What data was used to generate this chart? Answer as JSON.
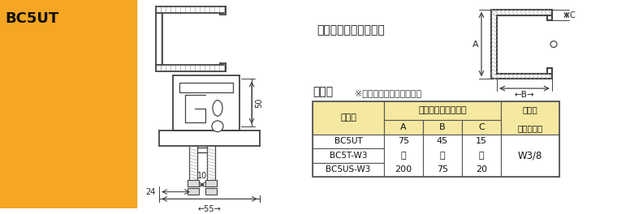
{
  "bg_color": "#f5a623",
  "white_bg": "#ffffff",
  "title_text": "BC5UT",
  "table_border": "#555555",
  "part_numbers": [
    "BC5UT",
    "BC5T-W3",
    "BC5US-W3"
  ],
  "col_A_lines": [
    "75",
    "～",
    "200"
  ],
  "col_B_lines": [
    "45",
    "～",
    "75"
  ],
  "col_C_lines": [
    "15",
    "～",
    "20"
  ],
  "col_bolt": "W3/8",
  "header1": "品　番",
  "header2": "適合リップみぞ形銃",
  "header3_line1": "適　合",
  "header3_line2": "吹りボルト",
  "subheader_A": "A",
  "subheader_B": "B",
  "subheader_C": "C",
  "tekigo_title": "適合リップみぞ形銃図",
  "tekigo_table_title": "適合表",
  "tekigo_note": "※ステンレス銃仕様も同様",
  "dim_24": "24",
  "dim_10": "10",
  "dim_55": "55",
  "dim_50": "50",
  "header_bg": "#f5e8a0"
}
